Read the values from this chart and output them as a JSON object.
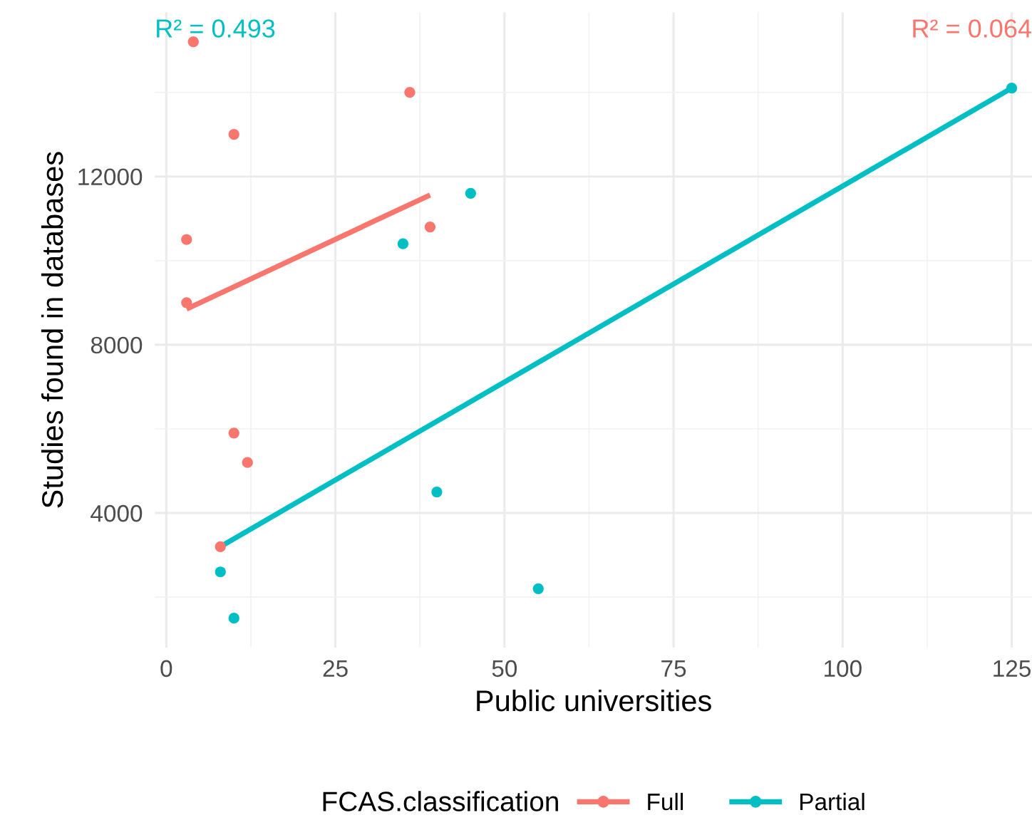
{
  "chart_data": {
    "type": "scatter",
    "xlabel": "Public universities",
    "ylabel": "Studies found in databases",
    "legend_title": "FCAS.classification",
    "annotations": [
      "R² = 0.493",
      "R² = 0.064"
    ],
    "series": [
      {
        "name": "Full",
        "color": "#f8766d",
        "marker": "circle",
        "x": [
          4,
          10,
          36,
          3,
          3,
          39,
          10,
          12,
          8
        ],
        "values": [
          15200,
          13000,
          14000,
          10500,
          9000,
          10800,
          5900,
          5200,
          3200
        ]
      },
      {
        "name": "Partial",
        "color": "#00bfc4",
        "marker": "circle",
        "x": [
          45,
          35,
          40,
          8,
          10,
          55,
          125
        ],
        "values": [
          11600,
          10400,
          4500,
          2600,
          1500,
          2200,
          14100
        ]
      },
      {
        "type": "line",
        "color": "#f8766d",
        "x": [
          3,
          39
        ],
        "values": [
          8850,
          11560
        ]
      },
      {
        "type": "line",
        "color": "#00bfc4",
        "x": [
          8,
          125
        ],
        "values": [
          3200,
          14100
        ]
      }
    ],
    "xlim": [
      -1.7,
      128
    ],
    "xticks": [
      0,
      25,
      50,
      75,
      100,
      125
    ],
    "ylim": [
      800,
      15900
    ],
    "yticks": [
      4000,
      8000,
      12000
    ],
    "grid": true,
    "legend": "bottom",
    "line_style": "solid"
  }
}
